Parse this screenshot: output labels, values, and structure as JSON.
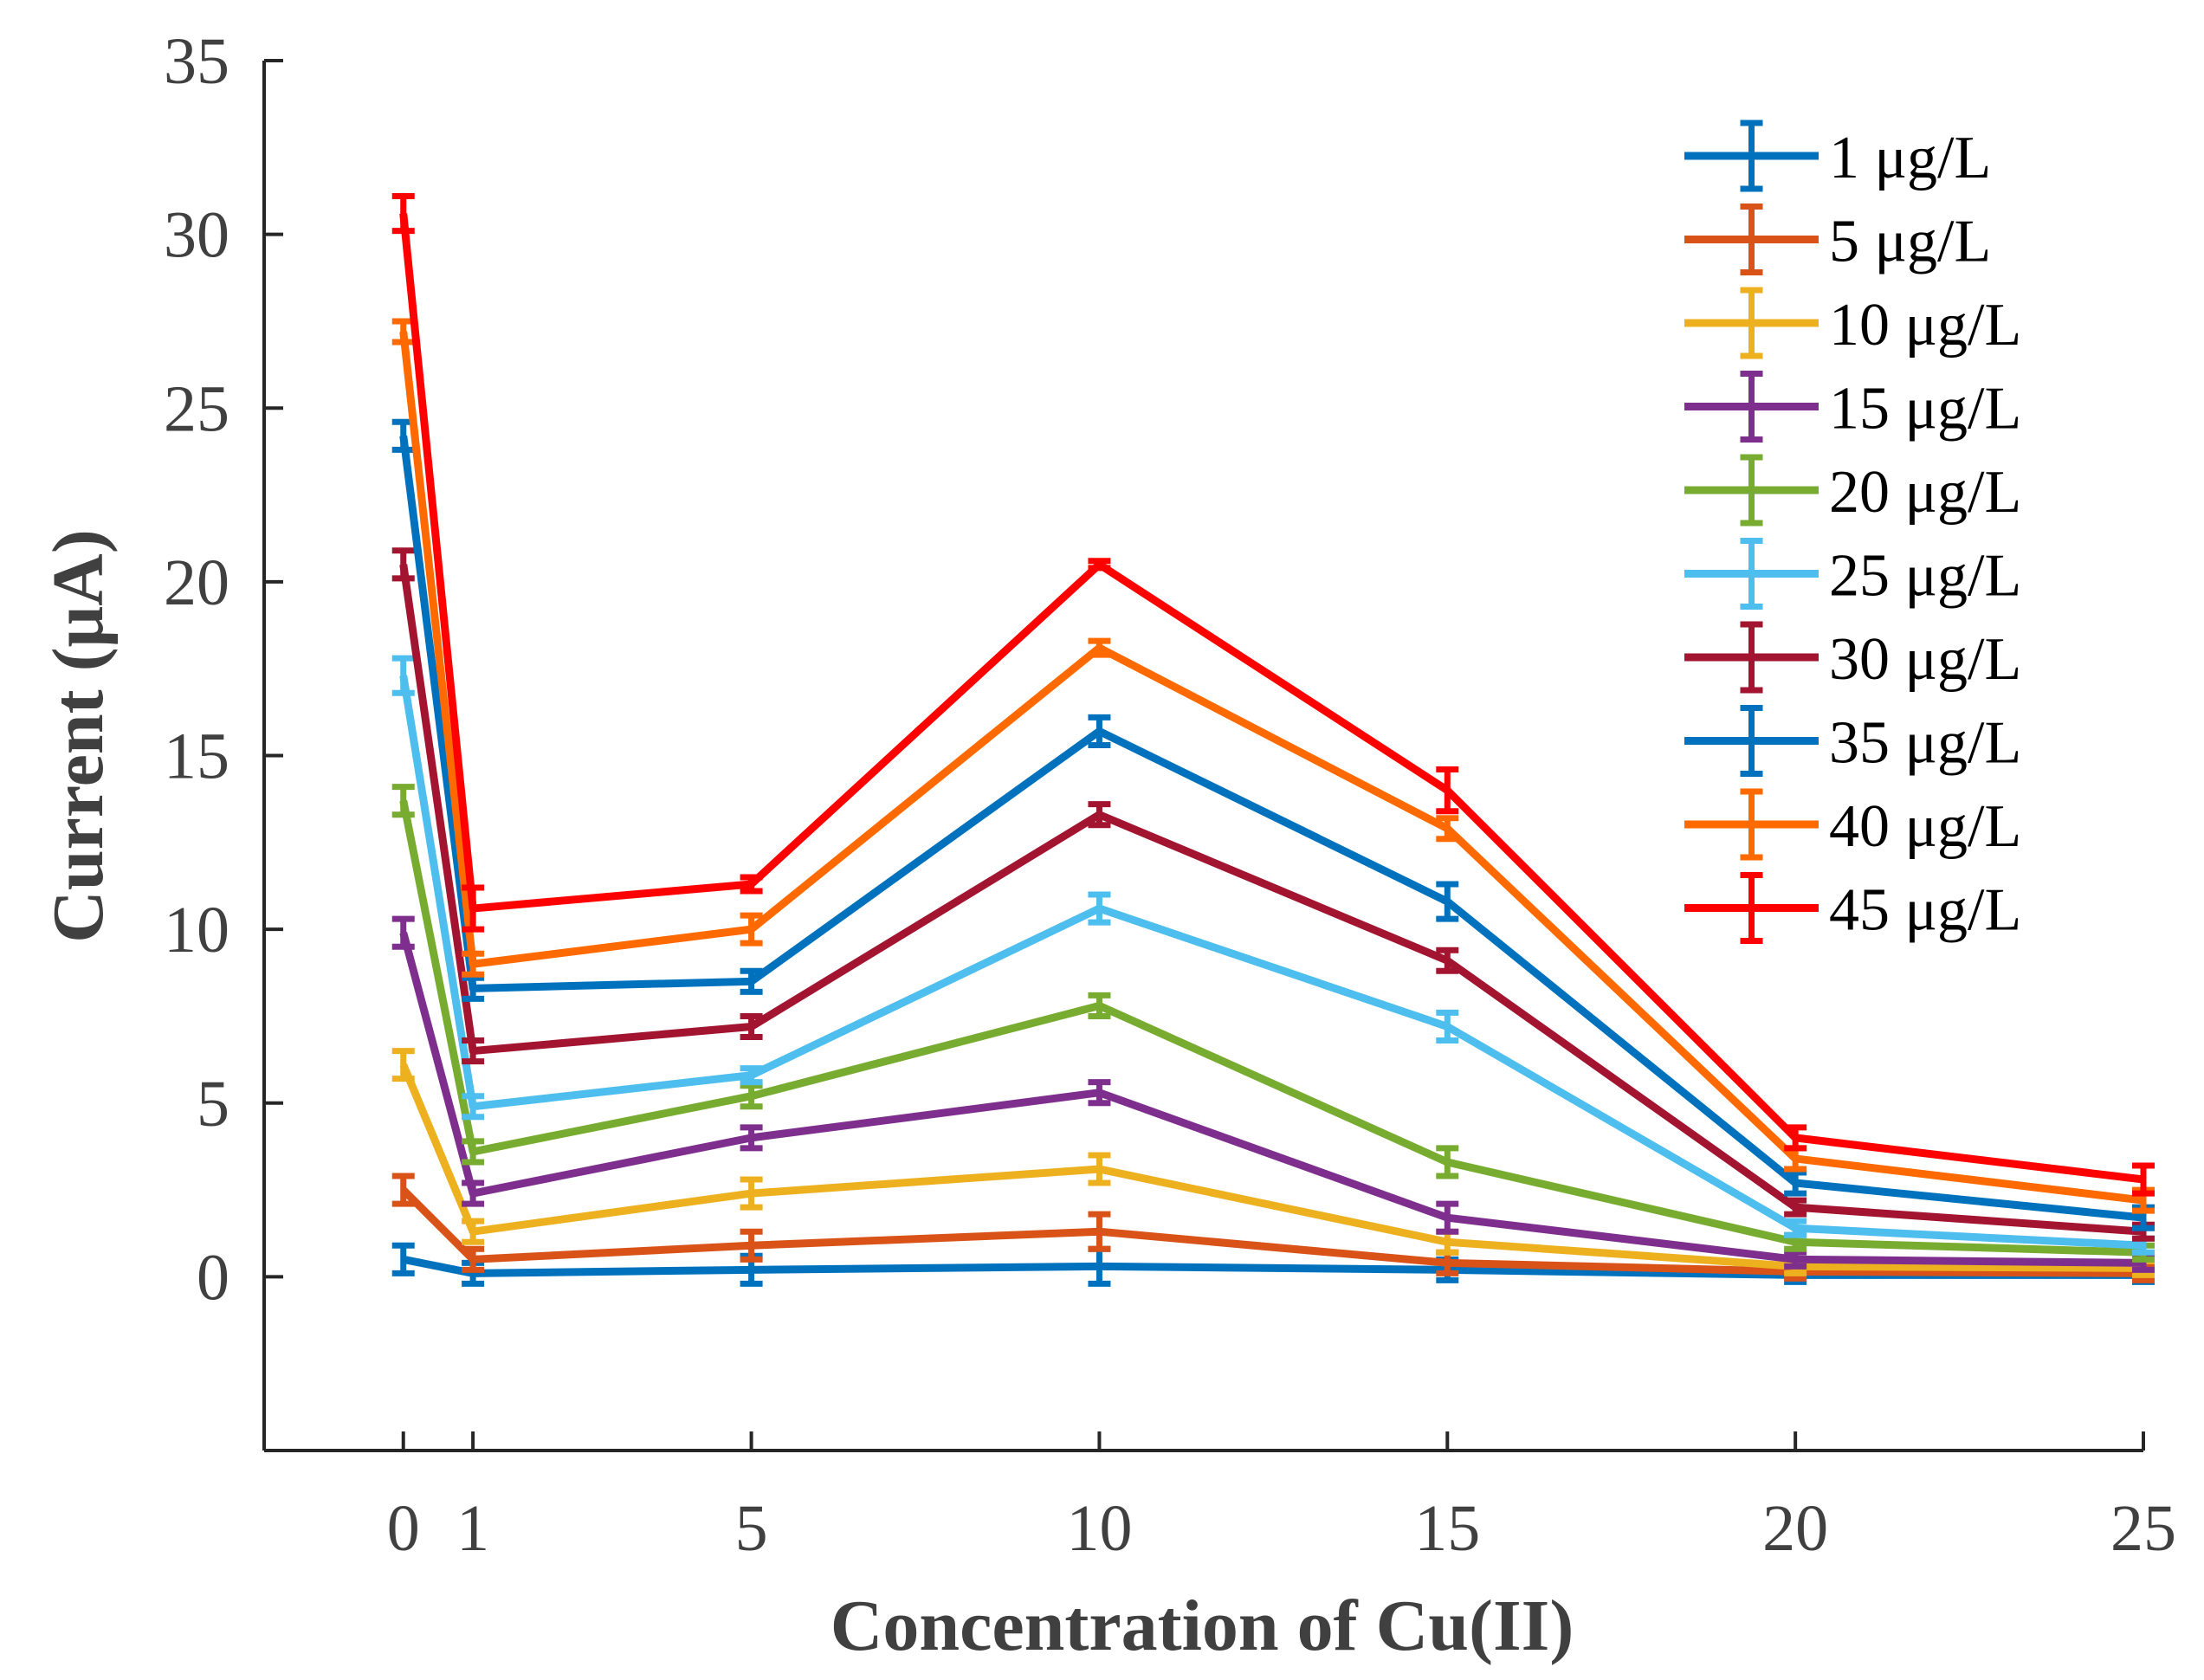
{
  "chart_data": {
    "type": "line",
    "title": "",
    "xlabel": "Concentration of Cu(II)",
    "ylabel": "Current (μA)",
    "x": [
      0,
      1,
      5,
      10,
      15,
      20,
      25
    ],
    "xticks": [
      "0",
      "1",
      "5",
      "10",
      "15",
      "20",
      "25"
    ],
    "yticks": [
      "0",
      "5",
      "10",
      "15",
      "20",
      "25",
      "30",
      "35"
    ],
    "xlim": [
      -2,
      25
    ],
    "ylim": [
      -5,
      35
    ],
    "grid": false,
    "legend_position": "top-right",
    "error_bars": true,
    "series": [
      {
        "name": "1 μg/L",
        "color": "#0072BD",
        "values": [
          0.5,
          0.1,
          0.2,
          0.3,
          0.2,
          0.05,
          0.05
        ],
        "errors": [
          0.4,
          0.3,
          0.4,
          0.5,
          0.3,
          0.2,
          0.2
        ]
      },
      {
        "name": "5 μg/L",
        "color": "#D95319",
        "values": [
          2.5,
          0.5,
          0.9,
          1.3,
          0.4,
          0.15,
          0.1
        ],
        "errors": [
          0.4,
          0.3,
          0.4,
          0.5,
          0.3,
          0.2,
          0.2
        ]
      },
      {
        "name": "10 μg/L",
        "color": "#EDB120",
        "values": [
          6.1,
          1.3,
          2.4,
          3.1,
          1.0,
          0.3,
          0.25
        ],
        "errors": [
          0.4,
          0.3,
          0.4,
          0.4,
          0.3,
          0.2,
          0.2
        ]
      },
      {
        "name": "15 μg/L",
        "color": "#7E2F8E",
        "values": [
          9.9,
          2.4,
          4.0,
          5.3,
          1.7,
          0.5,
          0.4
        ],
        "errors": [
          0.4,
          0.3,
          0.3,
          0.3,
          0.4,
          0.2,
          0.2
        ]
      },
      {
        "name": "20 μg/L",
        "color": "#77AC30",
        "values": [
          13.7,
          3.6,
          5.2,
          7.8,
          3.3,
          1.0,
          0.7
        ],
        "errors": [
          0.4,
          0.3,
          0.3,
          0.3,
          0.4,
          0.2,
          0.2
        ]
      },
      {
        "name": "25 μg/L",
        "color": "#4DBEEE",
        "values": [
          17.3,
          4.9,
          5.8,
          10.6,
          7.2,
          1.4,
          0.9
        ],
        "errors": [
          0.5,
          0.3,
          0.2,
          0.4,
          0.4,
          0.2,
          0.2
        ]
      },
      {
        "name": "30 μg/L",
        "color": "#A2142F",
        "values": [
          20.5,
          6.5,
          7.2,
          13.3,
          9.1,
          2.0,
          1.3
        ],
        "errors": [
          0.4,
          0.3,
          0.3,
          0.3,
          0.3,
          0.2,
          0.2
        ]
      },
      {
        "name": "35 μg/L",
        "color": "#0072BD",
        "values": [
          24.2,
          8.3,
          8.5,
          15.7,
          10.8,
          2.7,
          1.7
        ],
        "errors": [
          0.4,
          0.3,
          0.3,
          0.4,
          0.5,
          0.3,
          0.3
        ]
      },
      {
        "name": "40 μg/L",
        "color": "#FF6A00",
        "values": [
          27.2,
          9.0,
          10.0,
          18.1,
          12.9,
          3.4,
          2.2
        ],
        "errors": [
          0.3,
          0.3,
          0.4,
          0.2,
          0.3,
          0.3,
          0.3
        ]
      },
      {
        "name": "45 μg/L",
        "color": "#FF0000",
        "values": [
          30.6,
          10.6,
          11.3,
          20.5,
          14.0,
          4.0,
          2.8
        ],
        "errors": [
          0.5,
          0.6,
          0.2,
          0.1,
          0.6,
          0.3,
          0.4
        ]
      }
    ]
  }
}
